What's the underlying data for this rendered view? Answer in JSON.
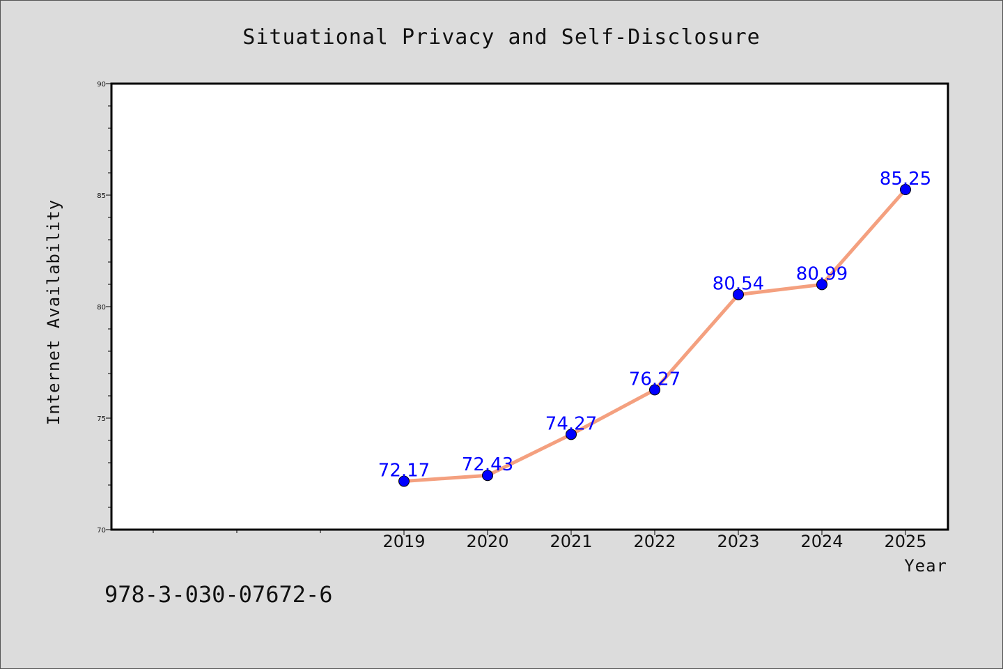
{
  "chart_data": {
    "type": "line",
    "title": "Situational Privacy and Self-Disclosure",
    "xlabel": "Year",
    "ylabel": "Internet Availability",
    "categories": [
      "2019",
      "2020",
      "2021",
      "2022",
      "2023",
      "2024",
      "2025"
    ],
    "series": [
      {
        "values": [
          72.17,
          72.43,
          74.27,
          76.27,
          80.54,
          80.99,
          85.25
        ],
        "labels": [
          "72.17",
          "72.43",
          "74.27",
          "76.27",
          "80.54",
          "80.99",
          "85.25"
        ],
        "line_color": "#f4a07f",
        "marker_color": "#0000ff"
      }
    ],
    "ylim": [
      70,
      90
    ],
    "yticks": [
      "70",
      "75",
      "80",
      "85",
      "90"
    ],
    "grid": false,
    "legend": "none"
  },
  "footer": {
    "isbn": "978-3-030-07672-6"
  },
  "colors": {
    "background": "#dcdcdc",
    "plot_area": "#ffffff",
    "data_label": "#0000ff"
  }
}
